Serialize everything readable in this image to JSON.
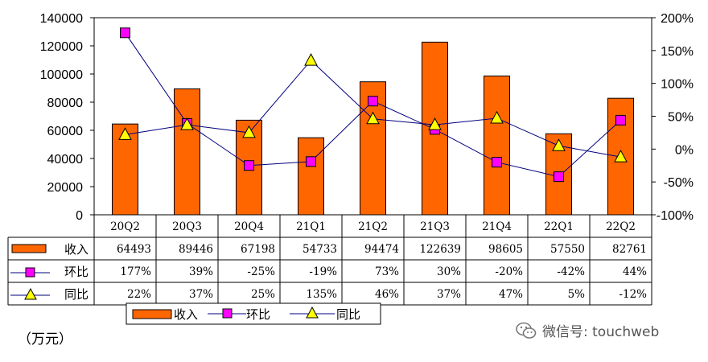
{
  "chart_data": {
    "type": "bar",
    "categories": [
      "20Q2",
      "20Q3",
      "20Q4",
      "21Q1",
      "21Q2",
      "21Q3",
      "21Q4",
      "22Q1",
      "22Q2"
    ],
    "series": [
      {
        "name": "收入",
        "kind": "bar",
        "axis": "left",
        "color": "#FF6600",
        "values": [
          64493,
          89446,
          67198,
          54733,
          94474,
          122639,
          98605,
          57550,
          82761
        ],
        "labels": [
          "64493",
          "89446",
          "67198",
          "54733",
          "94474",
          "122639",
          "98605",
          "57550",
          "82761"
        ]
      },
      {
        "name": "环比",
        "kind": "line",
        "axis": "right",
        "color": "#000080",
        "marker": "square",
        "marker_color": "#FF00FF",
        "values": [
          177,
          39,
          -25,
          -19,
          73,
          30,
          -20,
          -42,
          44
        ],
        "labels": [
          "177%",
          "39%",
          "-25%",
          "-19%",
          "73%",
          "30%",
          "-20%",
          "-42%",
          "44%"
        ]
      },
      {
        "name": "同比",
        "kind": "line",
        "axis": "right",
        "color": "#000080",
        "marker": "triangle",
        "marker_color": "#FFFF00",
        "values": [
          22,
          37,
          25,
          135,
          46,
          37,
          47,
          5,
          -12
        ],
        "labels": [
          "22%",
          "37%",
          "25%",
          "135%",
          "46%",
          "37%",
          "47%",
          "5%",
          "-12%"
        ]
      }
    ],
    "y_left": {
      "min": 0,
      "max": 140000,
      "step": 20000,
      "ticks": [
        "0",
        "20000",
        "40000",
        "60000",
        "80000",
        "100000",
        "120000",
        "140000"
      ]
    },
    "y_right": {
      "min": -100,
      "max": 200,
      "step": 50,
      "ticks": [
        "-100%",
        "-50%",
        "0%",
        "50%",
        "100%",
        "150%",
        "200%"
      ]
    },
    "gridlines": false,
    "data_table": true,
    "legend": {
      "position": "bottom",
      "items": [
        "收入",
        "环比",
        "同比"
      ]
    }
  },
  "unit_label": "（万元）",
  "watermark": "微信号: touchweb"
}
